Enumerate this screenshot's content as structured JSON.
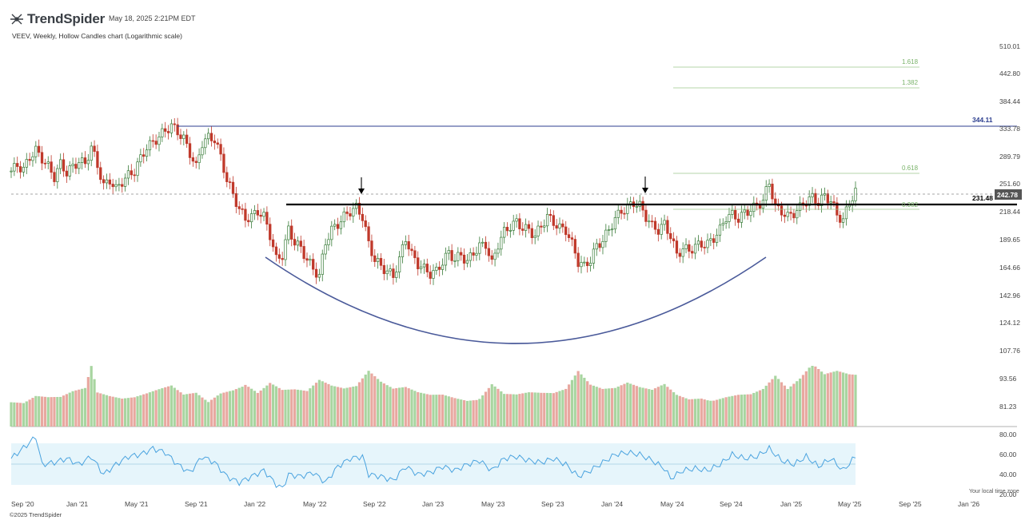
{
  "header": {
    "brand": "TrendSpider",
    "timestamp": "May 18, 2025 2:21PM EDT",
    "subtitle": "VEEV, Weekly, Hollow Candles chart (Logarithmic scale)",
    "copyright": "©2025 TrendSpider",
    "timezone_note": "Your local time zone"
  },
  "colors": {
    "up": "#3a7d3a",
    "down": "#c0392b",
    "volume_up": "#a8d5a0",
    "volume_down": "#e8a8a0",
    "resistance": "#000000",
    "high_line": "#2c3e8f",
    "cup": "#4a5a9a",
    "rsi_line": "#4aa3df",
    "rsi_band": "#e6f5fb",
    "fib": "#7ab36a"
  },
  "chart_data": {
    "type": "candlestick",
    "symbol": "VEEV",
    "interval": "Weekly",
    "scale": "log",
    "y_ticks": [
      "510.01",
      "442.80",
      "384.44",
      "333.78",
      "289.79",
      "251.60",
      "218.44",
      "189.65",
      "164.66",
      "142.96",
      "124.12",
      "107.76",
      "93.56",
      "81.23"
    ],
    "x_ticks": [
      "Sep '20",
      "Jan '21",
      "May '21",
      "Sep '21",
      "Jan '22",
      "May '22",
      "Sep '22",
      "Jan '23",
      "May '23",
      "Sep '23",
      "Jan '24",
      "May '24",
      "Sep '24",
      "Jan '25",
      "May '25",
      "Sep '25",
      "Jan '26"
    ],
    "ylim": [
      75,
      540
    ],
    "price_series": [
      [
        0,
        270
      ],
      [
        2,
        278
      ],
      [
        4,
        272
      ],
      [
        6,
        290
      ],
      [
        8,
        300
      ],
      [
        10,
        288
      ],
      [
        12,
        276
      ],
      [
        14,
        262
      ],
      [
        16,
        280
      ],
      [
        18,
        268
      ],
      [
        20,
        276
      ],
      [
        22,
        284
      ],
      [
        24,
        280
      ],
      [
        26,
        305
      ],
      [
        28,
        278
      ],
      [
        30,
        250
      ],
      [
        32,
        258
      ],
      [
        34,
        246
      ],
      [
        36,
        256
      ],
      [
        38,
        264
      ],
      [
        40,
        270
      ],
      [
        42,
        288
      ],
      [
        44,
        305
      ],
      [
        46,
        312
      ],
      [
        48,
        322
      ],
      [
        50,
        332
      ],
      [
        52,
        340
      ],
      [
        54,
        330
      ],
      [
        56,
        318
      ],
      [
        58,
        296
      ],
      [
        60,
        275
      ],
      [
        62,
        312
      ],
      [
        64,
        320
      ],
      [
        66,
        318
      ],
      [
        68,
        290
      ],
      [
        70,
        258
      ],
      [
        72,
        240
      ],
      [
        74,
        222
      ],
      [
        76,
        212
      ],
      [
        78,
        214
      ],
      [
        80,
        220
      ],
      [
        82,
        214
      ],
      [
        84,
        195
      ],
      [
        86,
        172
      ],
      [
        88,
        176
      ],
      [
        90,
        200
      ],
      [
        92,
        188
      ],
      [
        94,
        182
      ],
      [
        96,
        172
      ],
      [
        98,
        164
      ],
      [
        100,
        158
      ],
      [
        102,
        188
      ],
      [
        104,
        200
      ],
      [
        106,
        206
      ],
      [
        108,
        214
      ],
      [
        110,
        220
      ],
      [
        112,
        224
      ],
      [
        114,
        214
      ],
      [
        116,
        186
      ],
      [
        118,
        172
      ],
      [
        120,
        166
      ],
      [
        122,
        162
      ],
      [
        124,
        158
      ],
      [
        126,
        172
      ],
      [
        128,
        192
      ],
      [
        130,
        176
      ],
      [
        132,
        168
      ],
      [
        134,
        164
      ],
      [
        136,
        160
      ],
      [
        138,
        162
      ],
      [
        140,
        170
      ],
      [
        142,
        178
      ],
      [
        144,
        172
      ],
      [
        146,
        176
      ],
      [
        148,
        170
      ],
      [
        150,
        178
      ],
      [
        152,
        184
      ],
      [
        154,
        186
      ],
      [
        156,
        168
      ],
      [
        158,
        186
      ],
      [
        160,
        198
      ],
      [
        162,
        204
      ],
      [
        164,
        208
      ],
      [
        166,
        202
      ],
      [
        168,
        200
      ],
      [
        170,
        194
      ],
      [
        172,
        204
      ],
      [
        174,
        214
      ],
      [
        176,
        208
      ],
      [
        178,
        202
      ],
      [
        180,
        200
      ],
      [
        182,
        186
      ],
      [
        184,
        170
      ],
      [
        186,
        166
      ],
      [
        188,
        172
      ],
      [
        190,
        184
      ],
      [
        192,
        190
      ],
      [
        194,
        200
      ],
      [
        196,
        212
      ],
      [
        198,
        220
      ],
      [
        200,
        224
      ],
      [
        202,
        230
      ],
      [
        204,
        226
      ],
      [
        206,
        214
      ],
      [
        208,
        204
      ],
      [
        210,
        200
      ],
      [
        212,
        206
      ],
      [
        214,
        194
      ],
      [
        216,
        176
      ],
      [
        218,
        182
      ],
      [
        220,
        180
      ],
      [
        222,
        184
      ],
      [
        224,
        186
      ],
      [
        226,
        186
      ],
      [
        228,
        192
      ],
      [
        230,
        200
      ],
      [
        232,
        214
      ],
      [
        234,
        216
      ],
      [
        236,
        212
      ],
      [
        238,
        218
      ],
      [
        240,
        222
      ],
      [
        242,
        226
      ],
      [
        244,
        232
      ],
      [
        246,
        255
      ],
      [
        248,
        224
      ],
      [
        250,
        220
      ],
      [
        252,
        214
      ],
      [
        254,
        218
      ],
      [
        256,
        224
      ],
      [
        258,
        232
      ],
      [
        260,
        236
      ],
      [
        262,
        230
      ],
      [
        264,
        238
      ],
      [
        266,
        232
      ],
      [
        268,
        216
      ],
      [
        270,
        210
      ],
      [
        272,
        230
      ],
      [
        274,
        243
      ]
    ],
    "volume_series": [
      [
        0,
        50
      ],
      [
        4,
        45
      ],
      [
        8,
        55
      ],
      [
        12,
        50
      ],
      [
        16,
        48
      ],
      [
        20,
        55
      ],
      [
        24,
        58
      ],
      [
        26,
        90
      ],
      [
        28,
        50
      ],
      [
        32,
        44
      ],
      [
        36,
        40
      ],
      [
        40,
        42
      ],
      [
        44,
        48
      ],
      [
        48,
        55
      ],
      [
        52,
        62
      ],
      [
        56,
        50
      ],
      [
        60,
        55
      ],
      [
        64,
        42
      ],
      [
        68,
        60
      ],
      [
        72,
        70
      ],
      [
        76,
        85
      ],
      [
        80,
        64
      ],
      [
        84,
        78
      ],
      [
        88,
        62
      ],
      [
        92,
        60
      ],
      [
        96,
        55
      ],
      [
        100,
        70
      ],
      [
        104,
        60
      ],
      [
        108,
        55
      ],
      [
        112,
        58
      ],
      [
        116,
        80
      ],
      [
        120,
        65
      ],
      [
        124,
        56
      ],
      [
        128,
        60
      ],
      [
        132,
        54
      ],
      [
        136,
        52
      ],
      [
        140,
        55
      ],
      [
        144,
        52
      ],
      [
        148,
        50
      ],
      [
        152,
        56
      ],
      [
        156,
        80
      ],
      [
        160,
        58
      ],
      [
        164,
        54
      ],
      [
        168,
        55
      ],
      [
        172,
        52
      ],
      [
        176,
        50
      ],
      [
        180,
        55
      ],
      [
        184,
        80
      ],
      [
        188,
        60
      ],
      [
        192,
        54
      ],
      [
        196,
        56
      ],
      [
        200,
        65
      ],
      [
        204,
        60
      ],
      [
        208,
        58
      ],
      [
        212,
        70
      ],
      [
        216,
        55
      ],
      [
        220,
        50
      ],
      [
        224,
        55
      ],
      [
        228,
        52
      ],
      [
        232,
        55
      ],
      [
        236,
        56
      ],
      [
        240,
        54
      ],
      [
        244,
        60
      ],
      [
        248,
        78
      ],
      [
        252,
        56
      ],
      [
        256,
        70
      ],
      [
        260,
        90
      ],
      [
        264,
        75
      ],
      [
        268,
        80
      ],
      [
        272,
        76
      ]
    ],
    "rsi": {
      "ylim": [
        20,
        85
      ],
      "ticks": [
        "80.00",
        "60.00",
        "40.00",
        "20.00"
      ],
      "band": [
        30,
        70
      ],
      "midline": 50,
      "series": [
        [
          0,
          56
        ],
        [
          6,
          72
        ],
        [
          8,
          78
        ],
        [
          10,
          50
        ],
        [
          14,
          52
        ],
        [
          18,
          56
        ],
        [
          22,
          50
        ],
        [
          26,
          58
        ],
        [
          30,
          40
        ],
        [
          34,
          50
        ],
        [
          38,
          58
        ],
        [
          42,
          60
        ],
        [
          46,
          66
        ],
        [
          50,
          62
        ],
        [
          54,
          50
        ],
        [
          58,
          42
        ],
        [
          62,
          58
        ],
        [
          66,
          52
        ],
        [
          70,
          38
        ],
        [
          74,
          32
        ],
        [
          78,
          38
        ],
        [
          82,
          44
        ],
        [
          86,
          30
        ],
        [
          88,
          26
        ],
        [
          90,
          40
        ],
        [
          94,
          38
        ],
        [
          98,
          42
        ],
        [
          102,
          32
        ],
        [
          106,
          48
        ],
        [
          110,
          56
        ],
        [
          114,
          58
        ],
        [
          116,
          40
        ],
        [
          120,
          38
        ],
        [
          124,
          34
        ],
        [
          128,
          48
        ],
        [
          132,
          40
        ],
        [
          136,
          42
        ],
        [
          140,
          48
        ],
        [
          144,
          44
        ],
        [
          148,
          50
        ],
        [
          152,
          54
        ],
        [
          156,
          44
        ],
        [
          160,
          56
        ],
        [
          164,
          58
        ],
        [
          168,
          54
        ],
        [
          172,
          52
        ],
        [
          176,
          56
        ],
        [
          180,
          50
        ],
        [
          184,
          38
        ],
        [
          188,
          44
        ],
        [
          192,
          52
        ],
        [
          196,
          60
        ],
        [
          200,
          62
        ],
        [
          204,
          60
        ],
        [
          208,
          54
        ],
        [
          212,
          46
        ],
        [
          214,
          36
        ],
        [
          218,
          44
        ],
        [
          222,
          46
        ],
        [
          226,
          44
        ],
        [
          230,
          50
        ],
        [
          234,
          60
        ],
        [
          238,
          56
        ],
        [
          242,
          58
        ],
        [
          246,
          66
        ],
        [
          250,
          54
        ],
        [
          254,
          50
        ],
        [
          258,
          58
        ],
        [
          262,
          48
        ],
        [
          266,
          56
        ],
        [
          270,
          44
        ],
        [
          274,
          58
        ]
      ]
    },
    "levels": {
      "high_label": "344.11",
      "resistance_label": "231.48",
      "last_label": "242.78"
    },
    "fib_labels": [
      "1.618",
      "1.382",
      "0.618",
      "0.382"
    ]
  }
}
